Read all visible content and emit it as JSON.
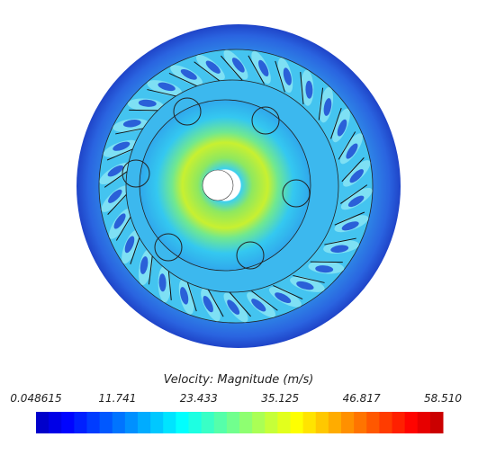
{
  "chart_data": {
    "type": "colormap",
    "title": "Velocity: Magnitude (m/s)",
    "clim": [
      0.048615,
      58.51
    ],
    "ticks": [
      0.048615,
      11.741,
      23.433,
      35.125,
      46.817,
      {
        "value": 58.51,
        "label": "58.510"
      }
    ]
  }
}
